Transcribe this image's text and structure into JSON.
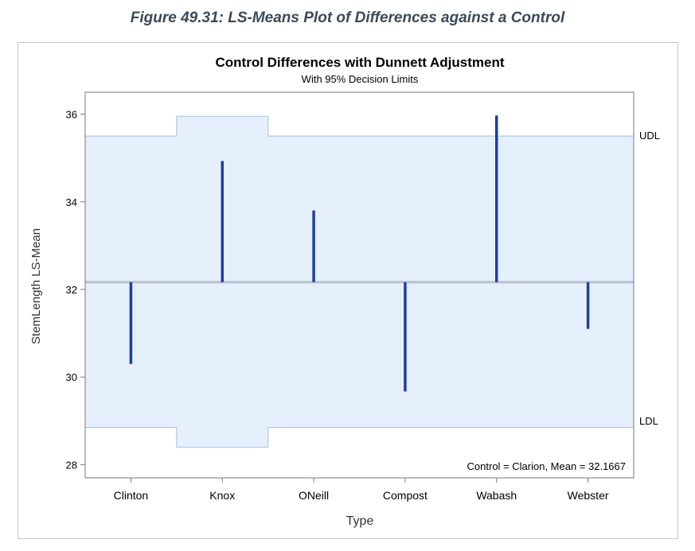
{
  "figure_caption": "Figure 49.31: LS-Means Plot of Differences against a Control",
  "chart_data": {
    "type": "bar",
    "title": "Control Differences with Dunnett Adjustment",
    "subtitle": "With 95% Decision Limits",
    "xlabel": "Type",
    "ylabel": "StemLength LS-Mean",
    "categories": [
      "Clinton",
      "Knox",
      "ONeill",
      "Compost",
      "Wabash",
      "Webster"
    ],
    "values": [
      30.3,
      34.93,
      33.8,
      29.67,
      35.97,
      31.1
    ],
    "control_mean": 32.1667,
    "ylim": [
      27.7,
      36.5
    ],
    "yticks": [
      28,
      30,
      32,
      34,
      36
    ],
    "udl": [
      35.5,
      35.95,
      35.5,
      35.5,
      35.5,
      35.5
    ],
    "ldl": [
      28.85,
      28.4,
      28.85,
      28.85,
      28.85,
      28.85
    ],
    "udl_label": "UDL",
    "ldl_label": "LDL",
    "annotation": "Control = Clarion, Mean = 32.1667",
    "colors": {
      "bar": "#1f3fa0",
      "band_fill": "#e5f0fc",
      "band_edge": "#b4c8e2",
      "reference_line": "#b8bfd0",
      "axis": "#7a7a7a"
    }
  }
}
